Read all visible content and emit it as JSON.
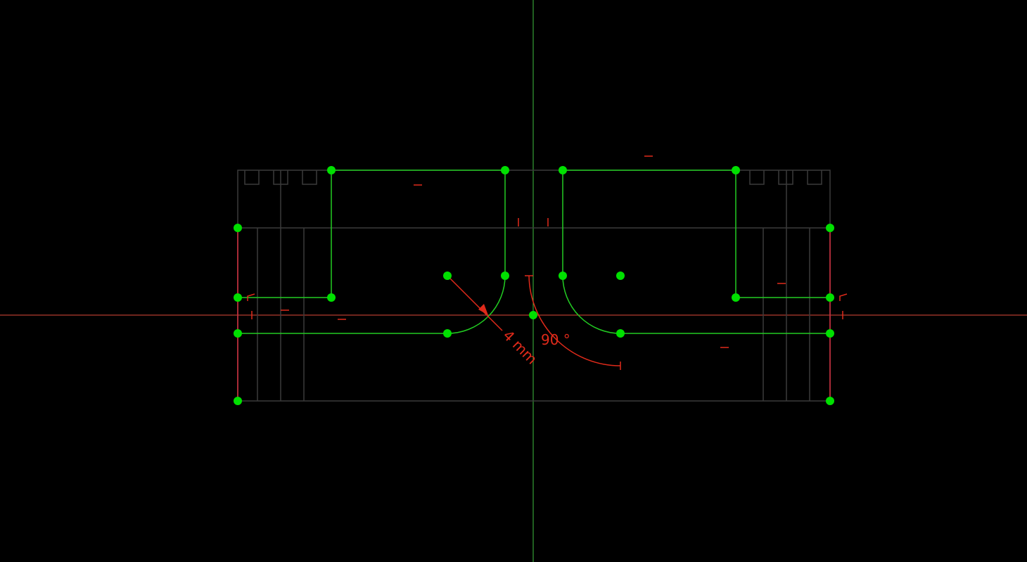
{
  "app": {
    "view": "sketcher-2d"
  },
  "colors": {
    "background": "#000000",
    "x_axis": "#e04a3a",
    "y_axis": "#3fbf3f",
    "geometry": "#22cc22",
    "construction": "#444444",
    "constraint": "#e02a1a",
    "vertex": "#00e000"
  },
  "dimensions": {
    "radius_label": "4 mm",
    "angle_label": "90 °"
  },
  "icons": {
    "vertex": "vertex-point-icon",
    "horizontal_constraint": "horizontal-constraint-icon",
    "vertical_constraint": "vertical-constraint-icon",
    "tangent_constraint": "tangent-constraint-icon"
  }
}
